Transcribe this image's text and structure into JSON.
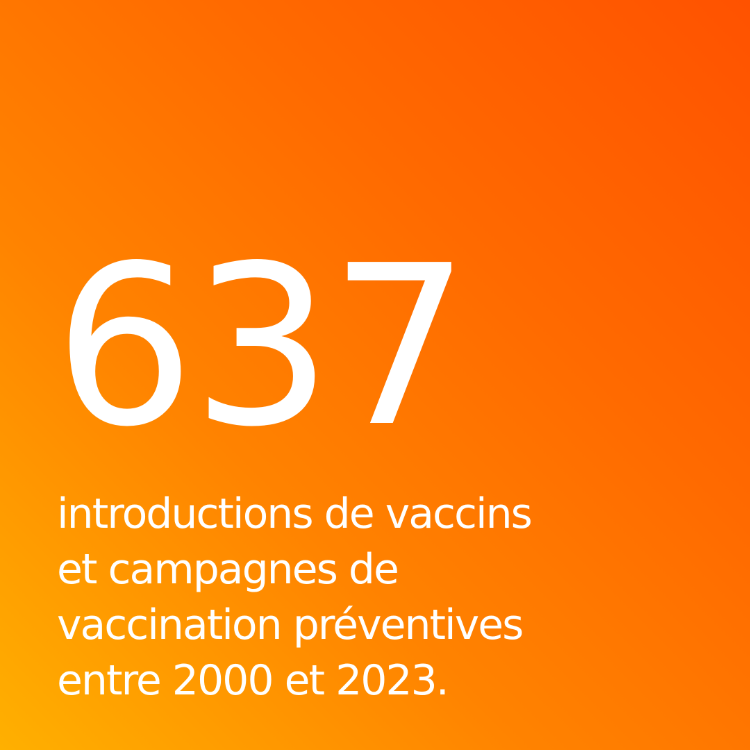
{
  "stat": {
    "value": "637",
    "description_lines": [
      "introductions de vaccins",
      "et campagnes de",
      "vaccination préventives",
      "entre 2000 et 2023."
    ]
  },
  "colors": {
    "gradient_top_right": "#ff5200",
    "gradient_bottom_left": "#ffb000",
    "text": "#ffffff"
  }
}
